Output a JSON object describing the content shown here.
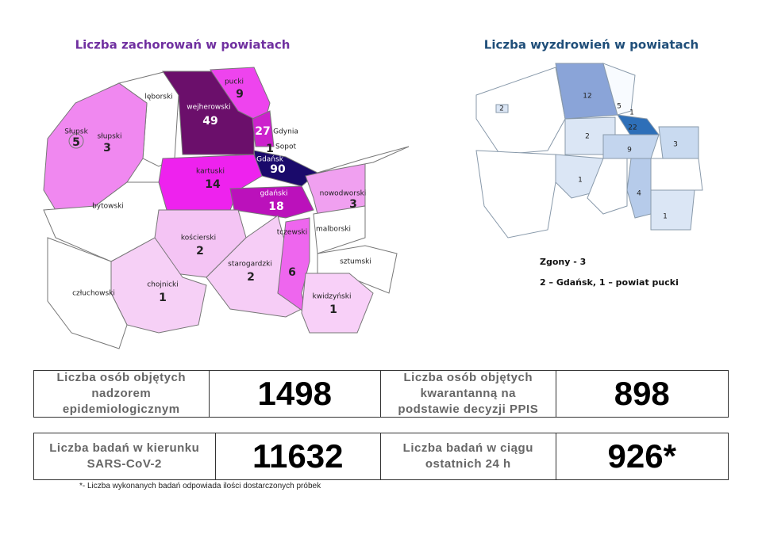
{
  "left_map": {
    "title": "Liczba zachorowań w powiatach",
    "regions": [
      {
        "name": "lęborski"
      },
      {
        "name": "słupski",
        "count": 3
      },
      {
        "name": "Słupsk",
        "count": 5
      },
      {
        "name": "bytowski"
      },
      {
        "name": "człuchowski"
      },
      {
        "name": "chojnicki",
        "count": 1
      },
      {
        "name": "kościerski",
        "count": 2
      },
      {
        "name": "starogardzki",
        "count": 2
      },
      {
        "name": "kartuski",
        "count": 14
      },
      {
        "name": "wejherowski",
        "count": 49
      },
      {
        "name": "pucki",
        "count": 9
      },
      {
        "name": "Gdynia",
        "count": 27
      },
      {
        "name": "Sopot",
        "count": 1
      },
      {
        "name": "Gdańsk",
        "count": 90
      },
      {
        "name": "gdański",
        "count": 18
      },
      {
        "name": "nowodworski",
        "count": 3
      },
      {
        "name": "malborski"
      },
      {
        "name": "sztumski"
      },
      {
        "name": "tczewski",
        "count": 6
      },
      {
        "name": "kwidzyński",
        "count": 1
      }
    ]
  },
  "right_map": {
    "title": "Liczba wyzdrowień w powiatach",
    "counts": [
      2,
      12,
      5,
      1,
      22,
      2,
      9,
      3,
      1,
      4,
      1
    ],
    "notes": [
      "Zgony - 3",
      "2 – Gdańsk, 1 – powiat pucki"
    ]
  },
  "stats": {
    "rows": [
      [
        {
          "label": "Liczba osób objętych nadzorem epidemiologicznym",
          "value": 1498
        },
        {
          "label": "Liczba osób objętych kwarantanną na podstawie decyzji PPIS",
          "value": 898
        }
      ],
      [
        {
          "label": "Liczba badań w kierunku SARS-CoV-2",
          "value": 11632
        },
        {
          "label": "Liczba badań w ciągu ostatnich 24 h",
          "value": "926*"
        }
      ]
    ],
    "footnote": "*- Liczba wykonanych badań odpowiada ilości dostarczonych próbek"
  }
}
